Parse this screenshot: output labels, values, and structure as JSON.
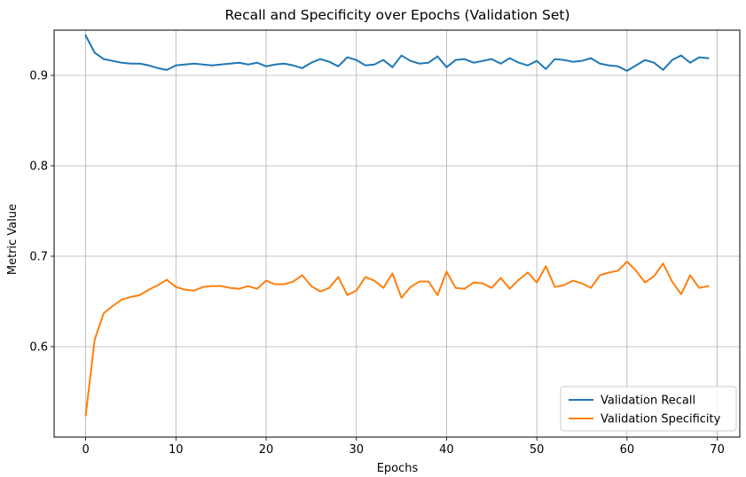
{
  "chart_data": {
    "type": "line",
    "title": "Recall and Specificity over Epochs (Validation Set)",
    "xlabel": "Epochs",
    "ylabel": "Metric Value",
    "xlim": [
      -3.5,
      72.5
    ],
    "ylim": [
      0.5,
      0.95
    ],
    "xticks": [
      0,
      10,
      20,
      30,
      40,
      50,
      60,
      70
    ],
    "yticks": [
      0.6,
      0.7,
      0.8,
      0.9
    ],
    "ytick_labels": [
      "0.6",
      "0.7",
      "0.8",
      "0.9"
    ],
    "grid": true,
    "legend_position": "lower-right",
    "x": [
      0,
      1,
      2,
      3,
      4,
      5,
      6,
      7,
      8,
      9,
      10,
      11,
      12,
      13,
      14,
      15,
      16,
      17,
      18,
      19,
      20,
      21,
      22,
      23,
      24,
      25,
      26,
      27,
      28,
      29,
      30,
      31,
      32,
      33,
      34,
      35,
      36,
      37,
      38,
      39,
      40,
      41,
      42,
      43,
      44,
      45,
      46,
      47,
      48,
      49,
      50,
      51,
      52,
      53,
      54,
      55,
      56,
      57,
      58,
      59,
      60,
      61,
      62,
      63,
      64,
      65,
      66,
      67,
      68,
      69
    ],
    "series": [
      {
        "name": "Validation Recall",
        "color": "#1f77b4",
        "values": [
          0.944,
          0.925,
          0.918,
          0.916,
          0.914,
          0.913,
          0.913,
          0.911,
          0.908,
          0.906,
          0.911,
          0.912,
          0.913,
          0.912,
          0.911,
          0.912,
          0.913,
          0.914,
          0.912,
          0.914,
          0.91,
          0.912,
          0.913,
          0.911,
          0.908,
          0.914,
          0.918,
          0.915,
          0.91,
          0.92,
          0.917,
          0.911,
          0.912,
          0.917,
          0.909,
          0.922,
          0.916,
          0.913,
          0.914,
          0.921,
          0.909,
          0.917,
          0.918,
          0.914,
          0.916,
          0.918,
          0.913,
          0.919,
          0.914,
          0.911,
          0.916,
          0.907,
          0.918,
          0.917,
          0.915,
          0.916,
          0.919,
          0.913,
          0.911,
          0.91,
          0.905,
          0.911,
          0.917,
          0.914,
          0.906,
          0.917,
          0.922,
          0.914,
          0.92,
          0.919
        ]
      },
      {
        "name": "Validation Specificity",
        "color": "#ff7f0e",
        "values": [
          0.524,
          0.608,
          0.637,
          0.645,
          0.652,
          0.655,
          0.657,
          0.663,
          0.668,
          0.674,
          0.666,
          0.663,
          0.662,
          0.666,
          0.667,
          0.667,
          0.665,
          0.664,
          0.667,
          0.664,
          0.673,
          0.669,
          0.669,
          0.672,
          0.679,
          0.667,
          0.661,
          0.665,
          0.677,
          0.657,
          0.662,
          0.677,
          0.673,
          0.665,
          0.681,
          0.654,
          0.666,
          0.672,
          0.672,
          0.657,
          0.683,
          0.665,
          0.664,
          0.671,
          0.67,
          0.665,
          0.676,
          0.664,
          0.674,
          0.682,
          0.671,
          0.689,
          0.666,
          0.668,
          0.673,
          0.67,
          0.665,
          0.679,
          0.682,
          0.684,
          0.694,
          0.684,
          0.671,
          0.678,
          0.692,
          0.672,
          0.658,
          0.679,
          0.665,
          0.667
        ]
      }
    ]
  }
}
